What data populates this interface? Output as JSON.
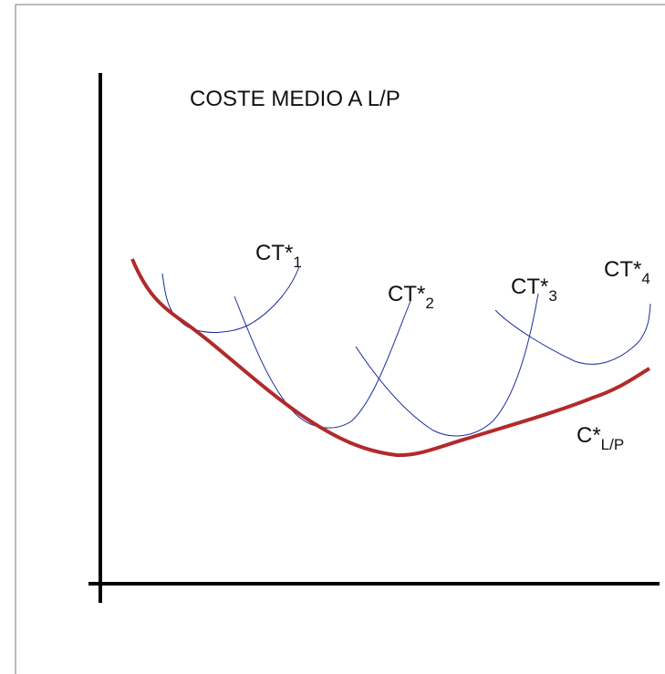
{
  "title": "COSTE MEDIO A L/P",
  "curves": [
    {
      "main": "CT*",
      "sub": "1"
    },
    {
      "main": "CT*",
      "sub": "2"
    },
    {
      "main": "CT*",
      "sub": "3"
    },
    {
      "main": "CT*",
      "sub": "4"
    }
  ],
  "envelope": {
    "main": "C*",
    "sub": "L/P"
  }
}
